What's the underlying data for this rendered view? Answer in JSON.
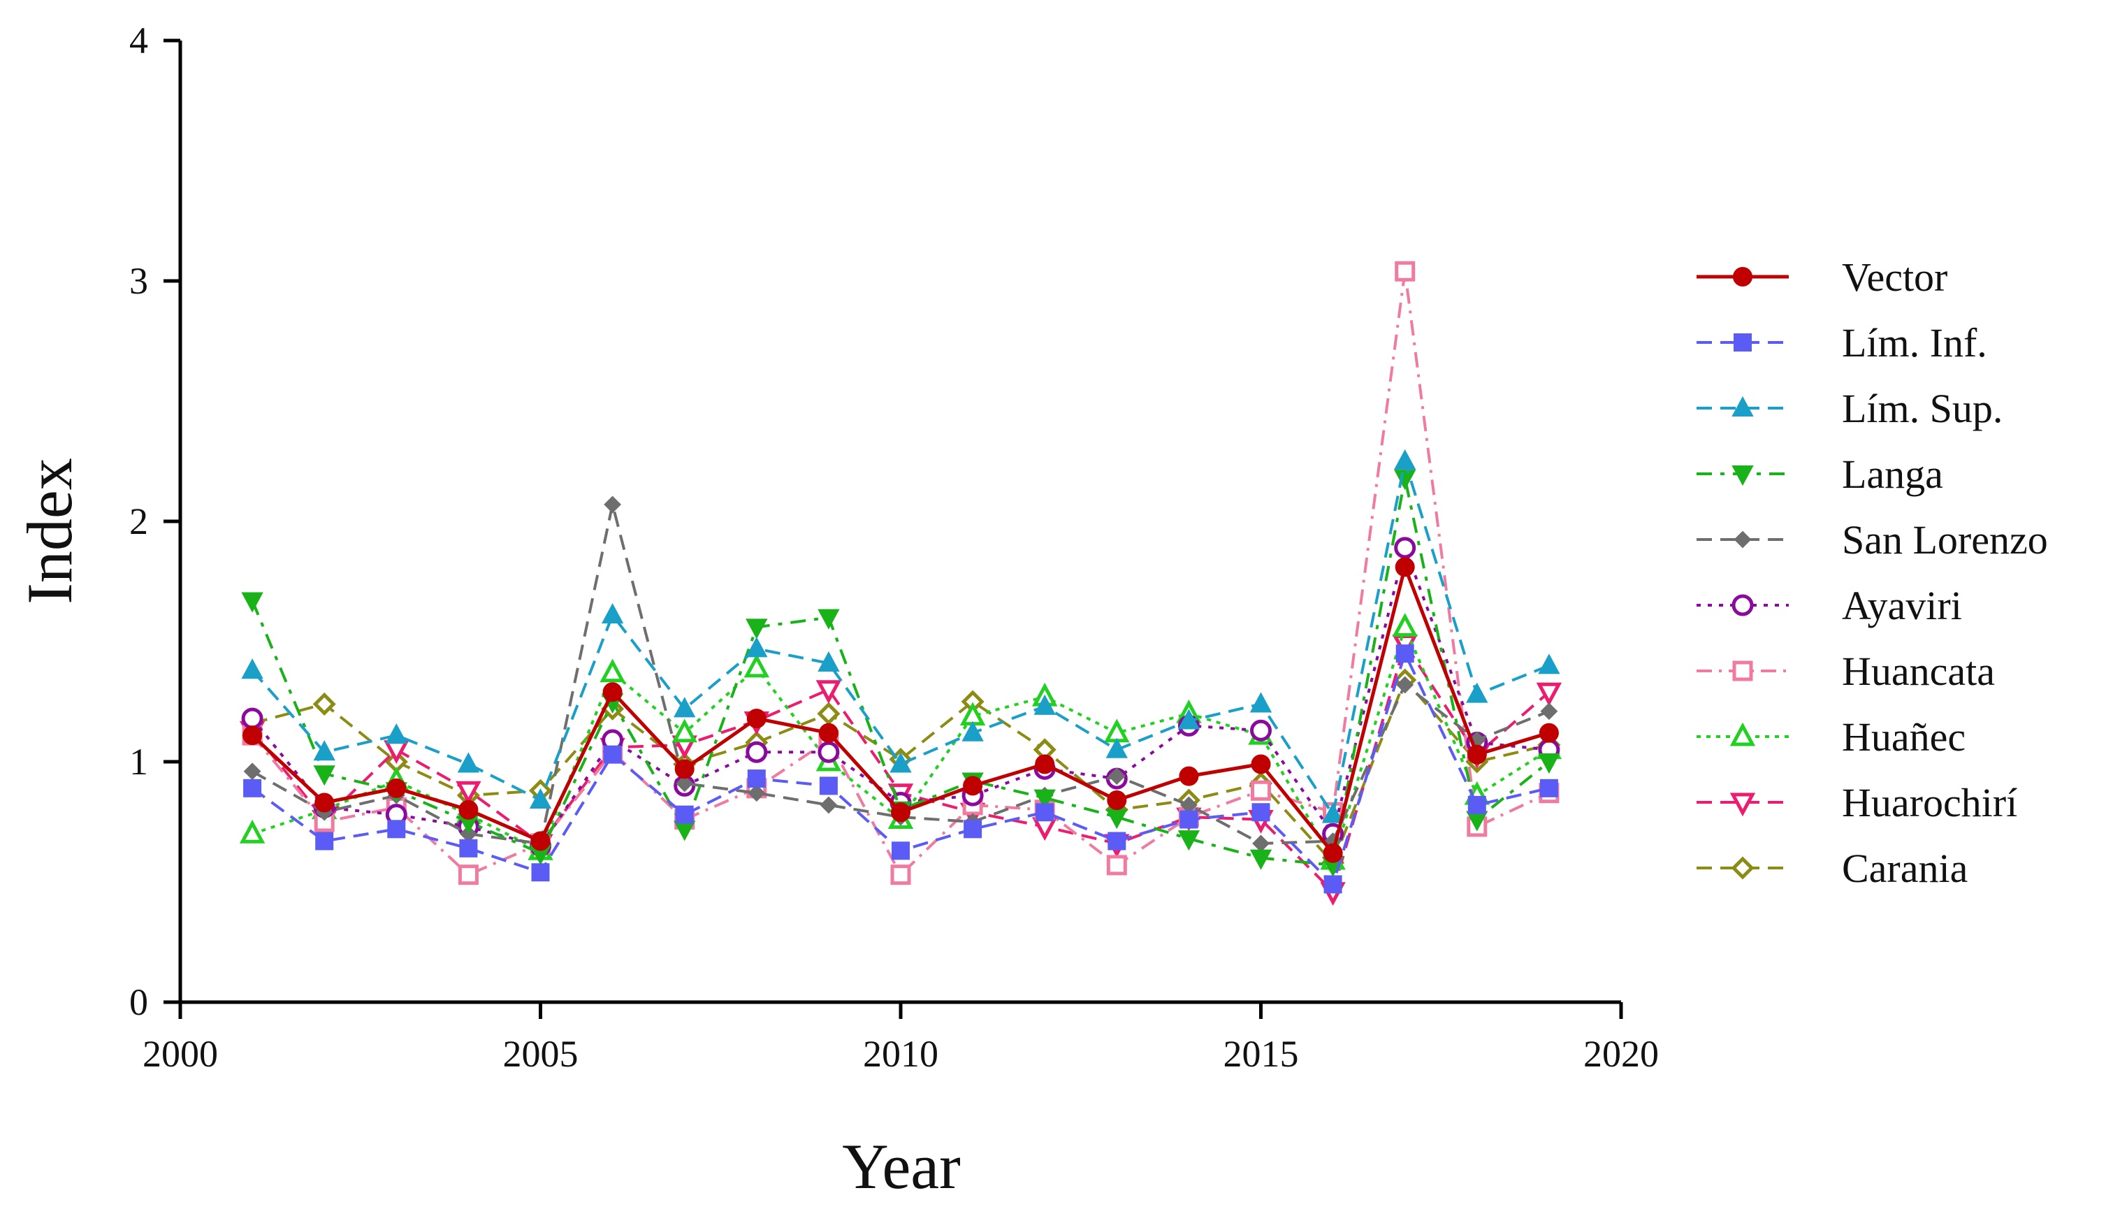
{
  "chart_data": {
    "type": "line",
    "title": "",
    "xlabel": "Year",
    "ylabel": "Index",
    "xlim": [
      2000,
      2020
    ],
    "ylim": [
      0,
      4
    ],
    "xticks": [
      2000,
      2005,
      2010,
      2015,
      2020
    ],
    "yticks": [
      0,
      1,
      2,
      3,
      4
    ],
    "grid": false,
    "legend_position": "right",
    "x": [
      2001,
      2002,
      2003,
      2004,
      2005,
      2006,
      2007,
      2008,
      2009,
      2010,
      2011,
      2012,
      2013,
      2014,
      2015,
      2016,
      2017,
      2018,
      2019
    ],
    "series": [
      {
        "name": "Vector",
        "color": "#c00000",
        "marker": "circle-filled",
        "dash": "",
        "values": [
          1.11,
          0.83,
          0.89,
          0.8,
          0.67,
          1.29,
          0.97,
          1.18,
          1.12,
          0.79,
          0.9,
          0.99,
          0.84,
          0.94,
          0.99,
          0.62,
          1.81,
          1.03,
          1.12
        ]
      },
      {
        "name": "Lím. Inf.",
        "color": "#5b5bf5",
        "marker": "square-filled",
        "dash": "22,12",
        "values": [
          0.89,
          0.67,
          0.72,
          0.64,
          0.54,
          1.03,
          0.78,
          0.93,
          0.9,
          0.63,
          0.72,
          0.79,
          0.67,
          0.76,
          0.79,
          0.49,
          1.45,
          0.82,
          0.89
        ]
      },
      {
        "name": "Lím. Sup.",
        "color": "#1aa0c8",
        "marker": "triangle-up-filled",
        "dash": "22,12",
        "values": [
          1.38,
          1.04,
          1.11,
          0.99,
          0.84,
          1.61,
          1.22,
          1.47,
          1.41,
          0.99,
          1.12,
          1.23,
          1.05,
          1.17,
          1.24,
          0.78,
          2.25,
          1.28,
          1.4
        ]
      },
      {
        "name": "Langa",
        "color": "#19b219",
        "marker": "triangle-down-filled",
        "dash": "22,12,6,12",
        "values": [
          1.67,
          0.95,
          0.88,
          0.75,
          0.62,
          1.25,
          0.72,
          1.56,
          1.6,
          0.8,
          0.92,
          0.85,
          0.77,
          0.68,
          0.6,
          0.57,
          2.18,
          0.76,
          1.0
        ]
      },
      {
        "name": "San Lorenzo",
        "color": "#6e6e6e",
        "marker": "diamond-filled",
        "dash": "22,12",
        "values": [
          0.96,
          0.79,
          0.86,
          0.7,
          0.66,
          2.07,
          0.91,
          0.87,
          0.82,
          0.77,
          0.75,
          0.86,
          0.94,
          0.82,
          0.66,
          0.67,
          1.32,
          1.09,
          1.21
        ]
      },
      {
        "name": "Ayaviri",
        "color": "#8b0a9e",
        "marker": "circle-open",
        "dash": "6,10",
        "values": [
          1.18,
          0.81,
          0.78,
          0.73,
          0.65,
          1.09,
          0.9,
          1.04,
          1.04,
          0.83,
          0.86,
          0.97,
          0.93,
          1.15,
          1.13,
          0.7,
          1.89,
          1.08,
          1.05
        ]
      },
      {
        "name": "Huancata",
        "color": "#f07aa0",
        "marker": "square-open",
        "dash": "22,10,4,10",
        "values": [
          1.11,
          0.75,
          0.81,
          0.53,
          0.66,
          1.04,
          0.76,
          0.89,
          1.09,
          0.53,
          0.82,
          0.8,
          0.57,
          0.77,
          0.88,
          0.79,
          3.04,
          0.73,
          0.87
        ]
      },
      {
        "name": "Huañec",
        "color": "#22d022",
        "marker": "triangle-up-open",
        "dash": "6,8",
        "values": [
          0.7,
          0.8,
          0.92,
          0.78,
          0.63,
          1.37,
          1.12,
          1.39,
          1.0,
          0.76,
          1.19,
          1.27,
          1.12,
          1.2,
          1.11,
          0.59,
          1.56,
          0.86,
          1.05
        ]
      },
      {
        "name": "Huarochirí",
        "color": "#ec1c6e",
        "marker": "triangle-down-open",
        "dash": "22,12",
        "values": [
          1.13,
          0.76,
          1.05,
          0.88,
          0.66,
          1.06,
          1.07,
          1.17,
          1.3,
          0.87,
          0.79,
          0.73,
          0.66,
          0.77,
          0.76,
          0.46,
          1.49,
          1.03,
          1.29
        ]
      },
      {
        "name": "Carania",
        "color": "#8c8c14",
        "marker": "diamond-open",
        "dash": "22,12",
        "values": [
          1.16,
          1.24,
          1.0,
          0.86,
          0.88,
          1.22,
          0.99,
          1.08,
          1.2,
          1.01,
          1.25,
          1.05,
          0.8,
          0.84,
          0.91,
          0.58,
          1.34,
          1.0,
          1.07
        ]
      }
    ]
  }
}
